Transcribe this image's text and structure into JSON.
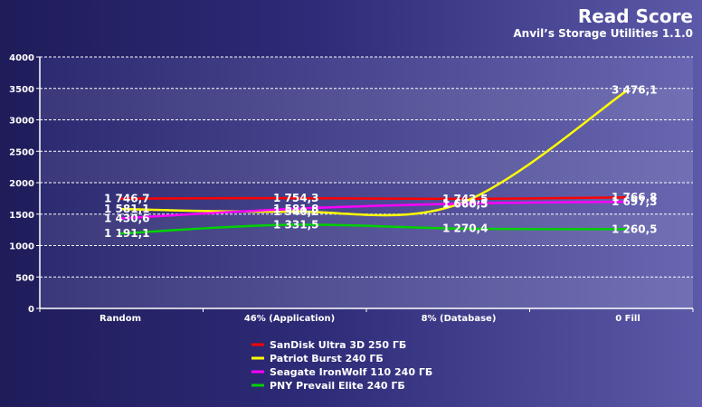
{
  "chart_data": {
    "type": "line",
    "title": "Read Score",
    "subtitle": "Anvil’s Storage Utilities 1.1.0",
    "categories": [
      "Random",
      "46% (Application)",
      "8% (Database)",
      "0 Fill"
    ],
    "ylim": [
      0,
      4000
    ],
    "yticks": [
      "0",
      "500",
      "1000",
      "1500",
      "2000",
      "2500",
      "3000",
      "3500",
      "4000"
    ],
    "grid": true,
    "legend_position": "bottom",
    "series": [
      {
        "name": "SanDisk Ultra 3D 250 ГБ",
        "color": "#ff0000",
        "values": [
          1746.7,
          1754.3,
          1742.5,
          1766.8
        ],
        "labels": [
          "1 746,7",
          "1 754,3",
          "1 742,5",
          "1 766,8"
        ]
      },
      {
        "name": "Patriot Burst 240 ГБ",
        "color": "#ffff00",
        "values": [
          1581.1,
          1540.2,
          1660.5,
          3476.1
        ],
        "labels": [
          "1 581,1",
          "1 540,2",
          "1 660,5",
          "3 476,1"
        ]
      },
      {
        "name": "Seagate IronWolf 110 240 ГБ",
        "color": "#ff00ff",
        "values": [
          1430.6,
          1581.8,
          1666.3,
          1697.3
        ],
        "labels": [
          "1 430,6",
          "1 581,8",
          "1 666,3",
          "1 697,3"
        ]
      },
      {
        "name": "PNY Prevail Elite 240 ГБ",
        "color": "#00d000",
        "values": [
          1191.1,
          1331.5,
          1270.4,
          1260.5
        ],
        "labels": [
          "1 191,1",
          "1 331,5",
          "1 270,4",
          "1 260,5"
        ]
      }
    ]
  }
}
